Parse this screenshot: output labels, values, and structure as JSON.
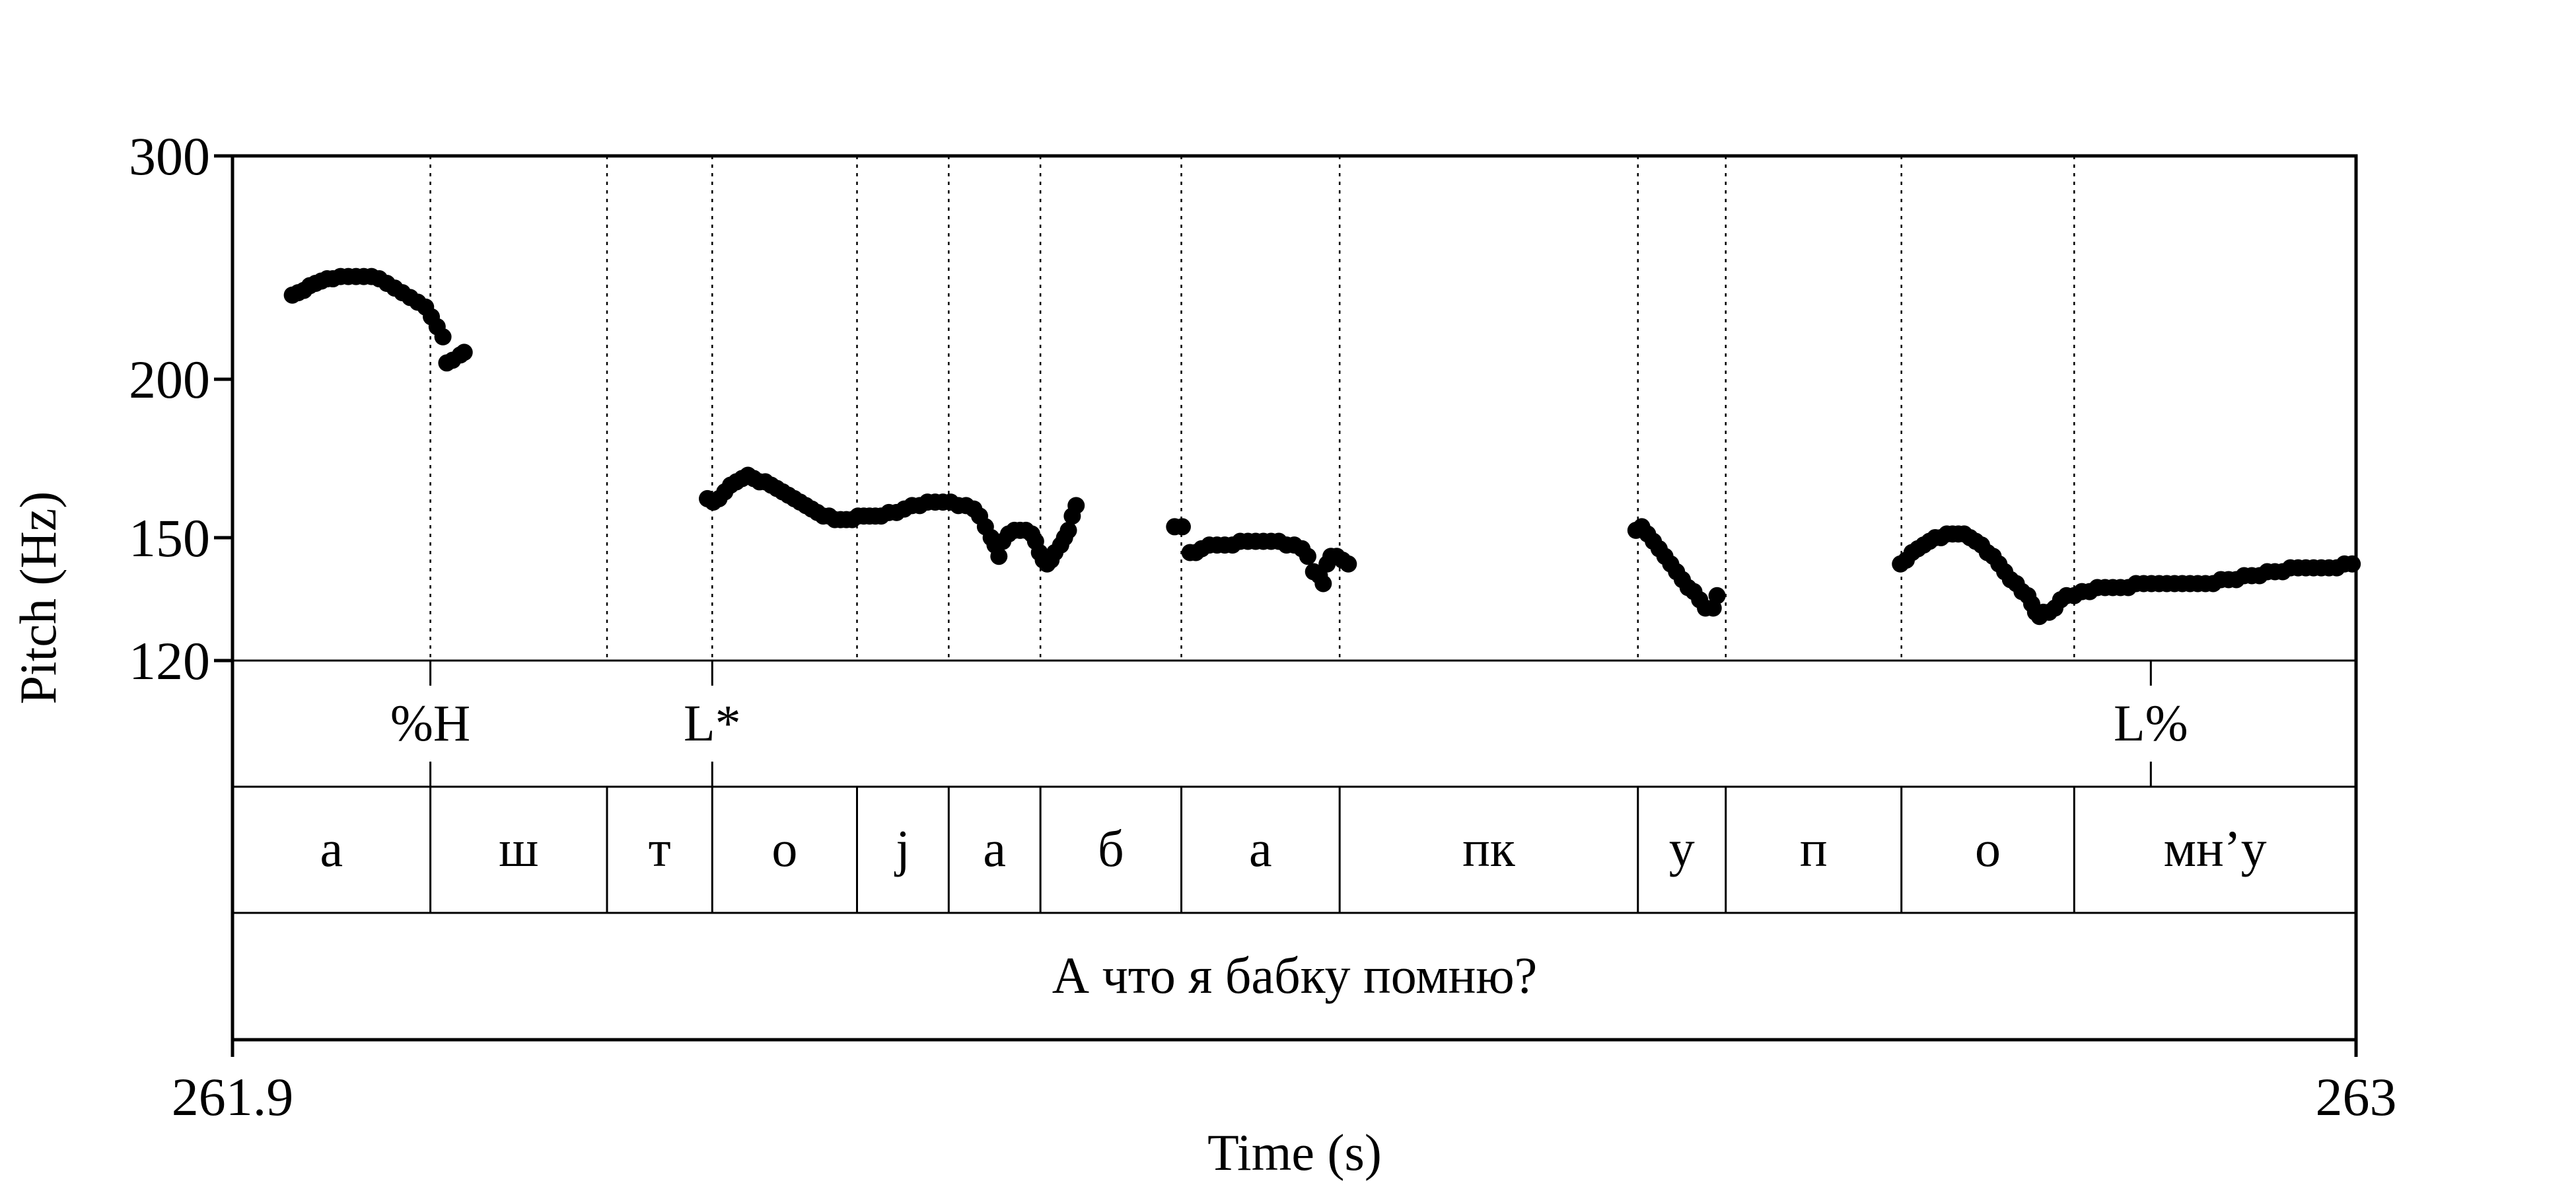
{
  "chart_data": {
    "type": "scatter",
    "ylabel": "Pitch (Hz)",
    "xlabel": "Time (s)",
    "xlim": [
      261.9,
      263.0
    ],
    "ylim": [
      120,
      300
    ],
    "y_scale": "log",
    "y_ticks": [
      "300",
      "200",
      "150",
      "120"
    ],
    "x_ticks": [
      "261.9",
      "263"
    ],
    "tones": [
      {
        "label": "%H",
        "t": 262.0025
      },
      {
        "label": "L*",
        "t": 262.1485
      },
      {
        "label": "L%",
        "t": 262.8937
      }
    ],
    "segment_boundaries": [
      262.0025,
      262.094,
      262.1485,
      262.2235,
      262.271,
      262.3185,
      262.3915,
      262.4735,
      262.628,
      262.6735,
      262.7645,
      262.854
    ],
    "segments": [
      {
        "label": "а",
        "start": 261.9,
        "end": 262.0025
      },
      {
        "label": "ш",
        "start": 262.0025,
        "end": 262.094
      },
      {
        "label": "т",
        "start": 262.094,
        "end": 262.1485
      },
      {
        "label": "о",
        "start": 262.1485,
        "end": 262.2235
      },
      {
        "label": "j",
        "start": 262.2235,
        "end": 262.271
      },
      {
        "label": "а",
        "start": 262.271,
        "end": 262.3185
      },
      {
        "label": "б",
        "start": 262.3185,
        "end": 262.3915
      },
      {
        "label": "а",
        "start": 262.3915,
        "end": 262.4735
      },
      {
        "label": "пк",
        "start": 262.4735,
        "end": 262.628
      },
      {
        "label": "у",
        "start": 262.628,
        "end": 262.6735
      },
      {
        "label": "п",
        "start": 262.6735,
        "end": 262.7645
      },
      {
        "label": "о",
        "start": 262.7645,
        "end": 262.854
      },
      {
        "label": "мн’у",
        "start": 262.854,
        "end": 263.0
      }
    ],
    "sentence": "А что я бабку помню?",
    "series": [
      {
        "points": [
          [
            261.931,
            233
          ],
          [
            261.934,
            234
          ],
          [
            261.937,
            235
          ],
          [
            261.94,
            237
          ],
          [
            261.943,
            238
          ],
          [
            261.946,
            239
          ],
          [
            261.949,
            240
          ],
          [
            261.952,
            240
          ],
          [
            261.956,
            241
          ],
          [
            261.96,
            241
          ],
          [
            261.964,
            241
          ],
          [
            261.968,
            241
          ],
          [
            261.972,
            241
          ],
          [
            261.976,
            240
          ],
          [
            261.98,
            238
          ],
          [
            261.984,
            236
          ],
          [
            261.988,
            234
          ],
          [
            261.992,
            232
          ],
          [
            261.996,
            230
          ],
          [
            262.0,
            228
          ],
          [
            262.003,
            224
          ],
          [
            262.006,
            220
          ],
          [
            262.009,
            216
          ],
          [
            262.011,
            206
          ],
          [
            262.014,
            207
          ],
          [
            262.018,
            209
          ],
          [
            262.02,
            210
          ]
        ]
      },
      {
        "points": [
          [
            262.146,
            161
          ],
          [
            262.149,
            160
          ],
          [
            262.152,
            161
          ],
          [
            262.155,
            163
          ],
          [
            262.158,
            165
          ],
          [
            262.161,
            166
          ],
          [
            262.164,
            167
          ],
          [
            262.167,
            168
          ],
          [
            262.17,
            167
          ],
          [
            262.173,
            166
          ],
          [
            262.176,
            166
          ],
          [
            262.179,
            165
          ],
          [
            262.182,
            164
          ],
          [
            262.185,
            163
          ],
          [
            262.188,
            162
          ],
          [
            262.191,
            161
          ],
          [
            262.194,
            160
          ],
          [
            262.197,
            159
          ],
          [
            262.2,
            158
          ],
          [
            262.203,
            157
          ],
          [
            262.206,
            156
          ],
          [
            262.209,
            156
          ],
          [
            262.212,
            155
          ],
          [
            262.215,
            155
          ],
          [
            262.218,
            155
          ],
          [
            262.221,
            155
          ],
          [
            262.224,
            156
          ],
          [
            262.227,
            156
          ],
          [
            262.23,
            156
          ],
          [
            262.233,
            156
          ],
          [
            262.236,
            156
          ],
          [
            262.24,
            157
          ],
          [
            262.244,
            157
          ],
          [
            262.248,
            158
          ],
          [
            262.252,
            159
          ],
          [
            262.256,
            159
          ],
          [
            262.26,
            160
          ],
          [
            262.264,
            160
          ],
          [
            262.268,
            160
          ],
          [
            262.272,
            160
          ],
          [
            262.276,
            159
          ],
          [
            262.28,
            159
          ],
          [
            262.284,
            158
          ],
          [
            262.287,
            156
          ],
          [
            262.29,
            153
          ],
          [
            262.293,
            150
          ],
          [
            262.295,
            148
          ],
          [
            262.297,
            145
          ],
          [
            262.299,
            149
          ],
          [
            262.302,
            151
          ],
          [
            262.305,
            152
          ],
          [
            262.308,
            152
          ],
          [
            262.311,
            152
          ],
          [
            262.314,
            151
          ],
          [
            262.316,
            149
          ],
          [
            262.318,
            146
          ],
          [
            262.32,
            144
          ],
          [
            262.322,
            143
          ],
          [
            262.324,
            144
          ],
          [
            262.326,
            146
          ],
          [
            262.329,
            148
          ],
          [
            262.331,
            150
          ],
          [
            262.333,
            152
          ],
          [
            262.335,
            156
          ],
          [
            262.337,
            159
          ]
        ]
      },
      {
        "points": [
          [
            262.388,
            153
          ],
          [
            262.392,
            153
          ],
          [
            262.396,
            146
          ],
          [
            262.399,
            146
          ],
          [
            262.402,
            147
          ],
          [
            262.406,
            148
          ],
          [
            262.41,
            148
          ],
          [
            262.414,
            148
          ],
          [
            262.418,
            148
          ],
          [
            262.422,
            149
          ],
          [
            262.426,
            149
          ],
          [
            262.43,
            149
          ],
          [
            262.434,
            149
          ],
          [
            262.438,
            149
          ],
          [
            262.442,
            149
          ],
          [
            262.446,
            148
          ],
          [
            262.45,
            148
          ],
          [
            262.454,
            147
          ],
          [
            262.457,
            145
          ],
          [
            262.46,
            141
          ],
          [
            262.463,
            140
          ],
          [
            262.465,
            138
          ],
          [
            262.467,
            143
          ],
          [
            262.469,
            145
          ],
          [
            262.472,
            145
          ],
          [
            262.475,
            144
          ],
          [
            262.478,
            143
          ]
        ]
      },
      {
        "points": [
          [
            262.627,
            152
          ],
          [
            262.63,
            153
          ],
          [
            262.633,
            151
          ],
          [
            262.636,
            149
          ],
          [
            262.639,
            147
          ],
          [
            262.642,
            145
          ],
          [
            262.645,
            143
          ],
          [
            262.648,
            141
          ],
          [
            262.651,
            139
          ],
          [
            262.654,
            137
          ],
          [
            262.657,
            136
          ],
          [
            262.66,
            134
          ],
          [
            262.663,
            132
          ],
          [
            262.667,
            132
          ],
          [
            262.669,
            135
          ]
        ]
      },
      {
        "points": [
          [
            262.764,
            143
          ],
          [
            262.767,
            144
          ],
          [
            262.77,
            146
          ],
          [
            262.773,
            147
          ],
          [
            262.776,
            148
          ],
          [
            262.779,
            149
          ],
          [
            262.782,
            150
          ],
          [
            262.785,
            150
          ],
          [
            262.788,
            151
          ],
          [
            262.791,
            151
          ],
          [
            262.794,
            151
          ],
          [
            262.797,
            151
          ],
          [
            262.8,
            150
          ],
          [
            262.803,
            149
          ],
          [
            262.806,
            148
          ],
          [
            262.809,
            146
          ],
          [
            262.812,
            145
          ],
          [
            262.815,
            143
          ],
          [
            262.818,
            141
          ],
          [
            262.821,
            139
          ],
          [
            262.824,
            138
          ],
          [
            262.827,
            136
          ],
          [
            262.83,
            135
          ],
          [
            262.832,
            133
          ],
          [
            262.834,
            131
          ],
          [
            262.836,
            130
          ],
          [
            262.838,
            131
          ],
          [
            262.841,
            131
          ],
          [
            262.844,
            132
          ],
          [
            262.847,
            134
          ],
          [
            262.85,
            135
          ],
          [
            262.854,
            135
          ],
          [
            262.858,
            136
          ],
          [
            262.862,
            136
          ],
          [
            262.866,
            137
          ],
          [
            262.87,
            137
          ],
          [
            262.874,
            137
          ],
          [
            262.878,
            137
          ],
          [
            262.882,
            137
          ],
          [
            262.886,
            138
          ],
          [
            262.89,
            138
          ],
          [
            262.894,
            138
          ],
          [
            262.898,
            138
          ],
          [
            262.902,
            138
          ],
          [
            262.906,
            138
          ],
          [
            262.91,
            138
          ],
          [
            262.914,
            138
          ],
          [
            262.918,
            138
          ],
          [
            262.922,
            138
          ],
          [
            262.926,
            138
          ],
          [
            262.93,
            139
          ],
          [
            262.934,
            139
          ],
          [
            262.938,
            139
          ],
          [
            262.942,
            140
          ],
          [
            262.946,
            140
          ],
          [
            262.95,
            140
          ],
          [
            262.954,
            141
          ],
          [
            262.958,
            141
          ],
          [
            262.962,
            141
          ],
          [
            262.966,
            142
          ],
          [
            262.97,
            142
          ],
          [
            262.974,
            142
          ],
          [
            262.978,
            142
          ],
          [
            262.982,
            142
          ],
          [
            262.986,
            142
          ],
          [
            262.99,
            142
          ],
          [
            262.994,
            143
          ],
          [
            262.998,
            143
          ]
        ]
      }
    ]
  }
}
